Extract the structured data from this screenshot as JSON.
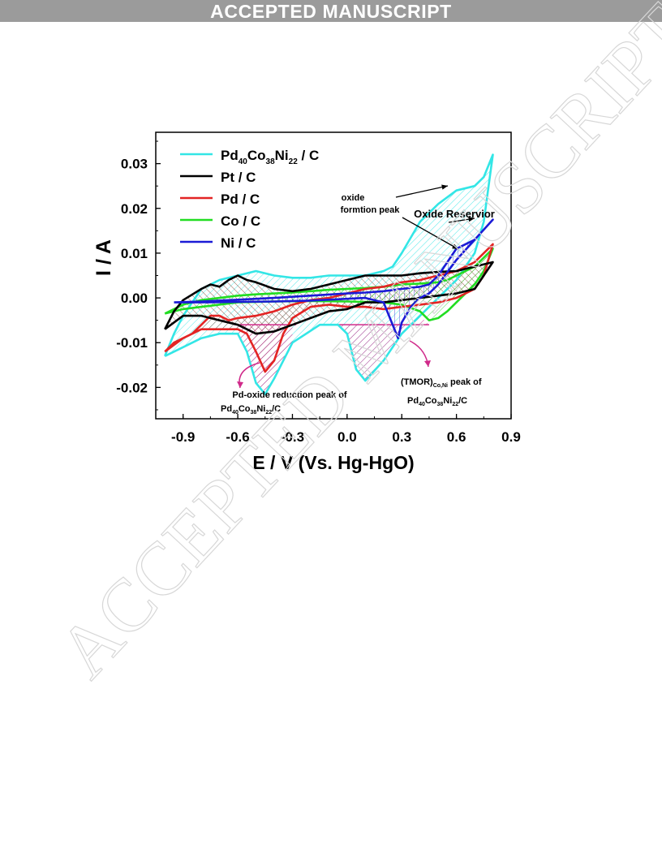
{
  "banner": {
    "text": "ACCEPTED MANUSCRIPT"
  },
  "watermark": {
    "text": "ACCEPTED MANUSCRIPT"
  },
  "chart_data": {
    "type": "line",
    "xlabel": "E / V (Vs. Hg-HgO)",
    "ylabel": "I / A",
    "xlim": [
      -1.05,
      0.9
    ],
    "ylim": [
      -0.027,
      0.037
    ],
    "xticks": [
      "-0.9",
      "-0.6",
      "-0.3",
      "0.0",
      "0.3",
      "0.6",
      "0.9"
    ],
    "xtick_values": [
      -0.9,
      -0.6,
      -0.3,
      0.0,
      0.3,
      0.6,
      0.9
    ],
    "yticks": [
      "-0.02",
      "-0.01",
      "0.00",
      "0.01",
      "0.02",
      "0.03"
    ],
    "ytick_values": [
      -0.02,
      -0.01,
      0.0,
      0.01,
      0.02,
      0.03
    ],
    "legend_position": "top-left",
    "grid": false,
    "series": [
      {
        "name_parts": [
          "Pd",
          "40",
          "Co",
          "38",
          "Ni",
          "22",
          " / C"
        ],
        "color": "#33e6e6",
        "forward": [
          [
            -1.0,
            -0.013
          ],
          [
            -0.95,
            -0.008
          ],
          [
            -0.9,
            -0.004
          ],
          [
            -0.8,
            0.002
          ],
          [
            -0.7,
            0.004
          ],
          [
            -0.6,
            0.005
          ],
          [
            -0.5,
            0.006
          ],
          [
            -0.4,
            0.005
          ],
          [
            -0.3,
            0.0045
          ],
          [
            -0.2,
            0.0045
          ],
          [
            -0.1,
            0.005
          ],
          [
            0.0,
            0.005
          ],
          [
            0.1,
            0.005
          ],
          [
            0.2,
            0.006
          ],
          [
            0.25,
            0.007
          ],
          [
            0.3,
            0.01
          ],
          [
            0.4,
            0.017
          ],
          [
            0.5,
            0.021
          ],
          [
            0.6,
            0.024
          ],
          [
            0.7,
            0.025
          ],
          [
            0.75,
            0.027
          ],
          [
            0.8,
            0.032
          ]
        ],
        "reverse": [
          [
            0.8,
            0.032
          ],
          [
            0.75,
            0.017
          ],
          [
            0.7,
            0.01
          ],
          [
            0.6,
            0.004
          ],
          [
            0.5,
            0.0
          ],
          [
            0.4,
            -0.004
          ],
          [
            0.3,
            -0.008
          ],
          [
            0.2,
            -0.014
          ],
          [
            0.1,
            -0.0185
          ],
          [
            0.05,
            -0.016
          ],
          [
            0.0,
            -0.008
          ],
          [
            -0.05,
            -0.006
          ],
          [
            -0.15,
            -0.006
          ],
          [
            -0.3,
            -0.01
          ],
          [
            -0.4,
            -0.018
          ],
          [
            -0.45,
            -0.0215
          ],
          [
            -0.5,
            -0.019
          ],
          [
            -0.55,
            -0.012
          ],
          [
            -0.6,
            -0.008
          ],
          [
            -0.7,
            -0.008
          ],
          [
            -0.8,
            -0.009
          ],
          [
            -0.9,
            -0.011
          ],
          [
            -1.0,
            -0.013
          ]
        ]
      },
      {
        "name_parts": [
          "Pt / C"
        ],
        "color": "#000000",
        "forward": [
          [
            -1.0,
            -0.007
          ],
          [
            -0.95,
            -0.003
          ],
          [
            -0.9,
            -0.0005
          ],
          [
            -0.8,
            0.002
          ],
          [
            -0.75,
            0.003
          ],
          [
            -0.7,
            0.0025
          ],
          [
            -0.65,
            0.004
          ],
          [
            -0.6,
            0.005
          ],
          [
            -0.55,
            0.004
          ],
          [
            -0.5,
            0.0035
          ],
          [
            -0.4,
            0.002
          ],
          [
            -0.3,
            0.0015
          ],
          [
            -0.2,
            0.002
          ],
          [
            -0.1,
            0.003
          ],
          [
            0.0,
            0.004
          ],
          [
            0.1,
            0.005
          ],
          [
            0.2,
            0.005
          ],
          [
            0.3,
            0.005
          ],
          [
            0.4,
            0.0055
          ],
          [
            0.5,
            0.0058
          ],
          [
            0.6,
            0.006
          ],
          [
            0.7,
            0.007
          ],
          [
            0.8,
            0.008
          ]
        ],
        "reverse": [
          [
            0.8,
            0.008
          ],
          [
            0.75,
            0.005
          ],
          [
            0.7,
            0.002
          ],
          [
            0.6,
            0.001
          ],
          [
            0.5,
            0.0005
          ],
          [
            0.4,
            0.0
          ],
          [
            0.3,
            -0.0005
          ],
          [
            0.2,
            -0.001
          ],
          [
            0.1,
            -0.001
          ],
          [
            0.0,
            -0.0025
          ],
          [
            -0.1,
            -0.003
          ],
          [
            -0.2,
            -0.0045
          ],
          [
            -0.3,
            -0.006
          ],
          [
            -0.4,
            -0.0075
          ],
          [
            -0.5,
            -0.008
          ],
          [
            -0.6,
            -0.006
          ],
          [
            -0.7,
            -0.005
          ],
          [
            -0.8,
            -0.004
          ],
          [
            -0.9,
            -0.004
          ],
          [
            -1.0,
            -0.007
          ]
        ]
      },
      {
        "name_parts": [
          "Pd / C"
        ],
        "color": "#e32424",
        "forward": [
          [
            -1.0,
            -0.012
          ],
          [
            -0.95,
            -0.01
          ],
          [
            -0.9,
            -0.009
          ],
          [
            -0.85,
            -0.008
          ],
          [
            -0.8,
            -0.006
          ],
          [
            -0.75,
            -0.004
          ],
          [
            -0.7,
            -0.004
          ],
          [
            -0.65,
            -0.005
          ],
          [
            -0.6,
            -0.0045
          ],
          [
            -0.5,
            -0.004
          ],
          [
            -0.4,
            -0.003
          ],
          [
            -0.3,
            -0.0015
          ],
          [
            -0.2,
            -0.0005
          ],
          [
            -0.1,
            0.0
          ],
          [
            0.0,
            0.001
          ],
          [
            0.1,
            0.002
          ],
          [
            0.2,
            0.0025
          ],
          [
            0.3,
            0.0035
          ],
          [
            0.4,
            0.004
          ],
          [
            0.5,
            0.005
          ],
          [
            0.6,
            0.006
          ],
          [
            0.7,
            0.008
          ],
          [
            0.8,
            0.012
          ]
        ],
        "reverse": [
          [
            0.8,
            0.012
          ],
          [
            0.75,
            0.005
          ],
          [
            0.7,
            0.002
          ],
          [
            0.6,
            0.0
          ],
          [
            0.5,
            -0.001
          ],
          [
            0.4,
            -0.0015
          ],
          [
            0.3,
            -0.002
          ],
          [
            0.2,
            -0.0025
          ],
          [
            0.1,
            -0.002
          ],
          [
            0.0,
            -0.002
          ],
          [
            -0.1,
            -0.0015
          ],
          [
            -0.2,
            -0.002
          ],
          [
            -0.3,
            -0.0045
          ],
          [
            -0.35,
            -0.008
          ],
          [
            -0.4,
            -0.014
          ],
          [
            -0.45,
            -0.0165
          ],
          [
            -0.5,
            -0.012
          ],
          [
            -0.55,
            -0.008
          ],
          [
            -0.6,
            -0.007
          ],
          [
            -0.7,
            -0.007
          ],
          [
            -0.8,
            -0.007
          ],
          [
            -0.9,
            -0.009
          ],
          [
            -1.0,
            -0.012
          ]
        ]
      },
      {
        "name_parts": [
          "Co / C"
        ],
        "color": "#22dd22",
        "forward": [
          [
            -1.0,
            -0.0035
          ],
          [
            -0.9,
            -0.0015
          ],
          [
            -0.8,
            -0.0005
          ],
          [
            -0.7,
            0.0
          ],
          [
            -0.6,
            0.0005
          ],
          [
            -0.5,
            0.0008
          ],
          [
            -0.4,
            0.001
          ],
          [
            -0.3,
            0.0012
          ],
          [
            -0.2,
            0.0015
          ],
          [
            -0.1,
            0.0018
          ],
          [
            0.0,
            0.002
          ],
          [
            0.1,
            0.0022
          ],
          [
            0.2,
            0.0025
          ],
          [
            0.3,
            0.003
          ],
          [
            0.4,
            0.0032
          ],
          [
            0.5,
            0.0035
          ],
          [
            0.55,
            0.004
          ],
          [
            0.6,
            0.005
          ],
          [
            0.7,
            0.007
          ],
          [
            0.8,
            0.011
          ]
        ],
        "reverse": [
          [
            0.8,
            0.011
          ],
          [
            0.75,
            0.006
          ],
          [
            0.7,
            0.003
          ],
          [
            0.6,
            -0.001
          ],
          [
            0.55,
            -0.003
          ],
          [
            0.5,
            -0.0045
          ],
          [
            0.45,
            -0.005
          ],
          [
            0.4,
            -0.003
          ],
          [
            0.3,
            -0.0015
          ],
          [
            0.2,
            -0.001
          ],
          [
            0.0,
            -0.0008
          ],
          [
            -0.2,
            -0.0007
          ],
          [
            -0.4,
            -0.0008
          ],
          [
            -0.6,
            -0.001
          ],
          [
            -0.8,
            -0.002
          ],
          [
            -0.9,
            -0.0025
          ],
          [
            -1.0,
            -0.0035
          ]
        ]
      },
      {
        "name_parts": [
          "Ni / C"
        ],
        "color": "#1b1bd6",
        "forward": [
          [
            -0.95,
            -0.001
          ],
          [
            -0.8,
            -0.0008
          ],
          [
            -0.6,
            -0.0004
          ],
          [
            -0.4,
            0.0
          ],
          [
            -0.2,
            0.0005
          ],
          [
            0.0,
            0.001
          ],
          [
            0.1,
            0.0012
          ],
          [
            0.2,
            0.0015
          ],
          [
            0.3,
            0.002
          ],
          [
            0.4,
            0.0025
          ],
          [
            0.45,
            0.003
          ],
          [
            0.5,
            0.005
          ],
          [
            0.55,
            0.008
          ],
          [
            0.6,
            0.011
          ],
          [
            0.65,
            0.012
          ],
          [
            0.7,
            0.013
          ],
          [
            0.8,
            0.0175
          ]
        ],
        "reverse": [
          [
            0.8,
            0.0175
          ],
          [
            0.7,
            0.013
          ],
          [
            0.6,
            0.0085
          ],
          [
            0.5,
            0.003
          ],
          [
            0.45,
            0.001
          ],
          [
            0.4,
            0.0
          ],
          [
            0.35,
            -0.002
          ],
          [
            0.3,
            -0.0055
          ],
          [
            0.28,
            -0.009
          ],
          [
            0.25,
            -0.006
          ],
          [
            0.2,
            -0.001
          ],
          [
            0.1,
            0.0
          ],
          [
            0.0,
            -0.0002
          ],
          [
            -0.2,
            -0.0006
          ],
          [
            -0.4,
            -0.0008
          ],
          [
            -0.6,
            -0.0009
          ],
          [
            -0.8,
            -0.001
          ],
          [
            -0.95,
            -0.001
          ]
        ]
      }
    ],
    "annotations": [
      {
        "text": "oxide",
        "x": 0.64,
        "y": 0.024,
        "target": [
          0.53,
          0.0225
        ],
        "arrow_to": [
          0.66,
          0.0255
        ]
      },
      {
        "text": "formtion peak",
        "x": 0.64,
        "y": 0.019
      },
      {
        "text": "Oxide Reservior",
        "x": 0.98,
        "y": 0.019
      },
      {
        "text": "Pd-oxide reduction peak of",
        "x": -0.29,
        "y": -0.021
      },
      {
        "text_parts": [
          "Pd",
          "40",
          "Co",
          "38",
          "Ni",
          "22",
          "/C"
        ],
        "x": -0.39,
        "y": -0.0245
      },
      {
        "text_parts": [
          "(TMOR)",
          "Co,Ni",
          " peak of"
        ],
        "x": 0.59,
        "y": -0.018
      },
      {
        "text_parts": [
          "Pd",
          "40",
          "Co",
          "38",
          "Ni",
          "22",
          "/C"
        ],
        "x": 0.59,
        "y": -0.0225
      }
    ]
  }
}
